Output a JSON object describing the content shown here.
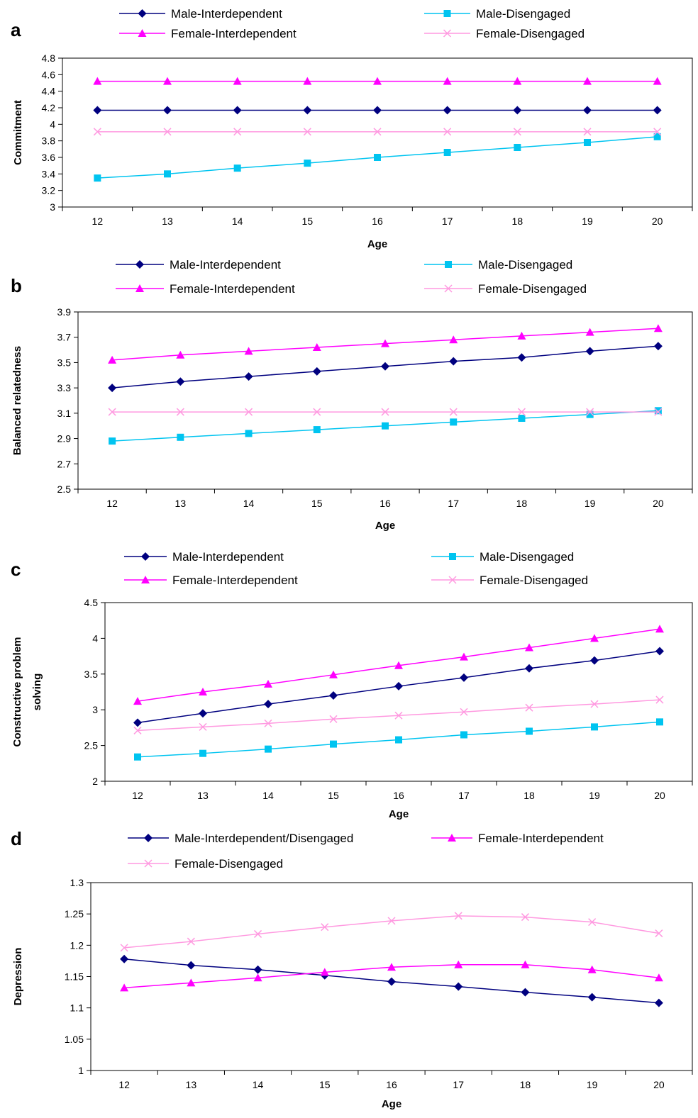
{
  "chart_data": [
    {
      "type": "line",
      "panel": "a",
      "xlabel": "Age",
      "ylabel": [
        "Commitment"
      ],
      "x": [
        12,
        13,
        14,
        15,
        16,
        17,
        18,
        19,
        20
      ],
      "ylim": [
        3,
        4.8
      ],
      "yticks": [
        3,
        3.2,
        3.4,
        3.6,
        3.8,
        4,
        4.2,
        4.4,
        4.6,
        4.8
      ],
      "ytick_labels": [
        "3",
        "3.2",
        "3.4",
        "3.6",
        "3.8",
        "4",
        "4.2",
        "4.4",
        "4.6",
        "4.8"
      ],
      "grid": false,
      "legend": [
        {
          "name": "Male-Interdependent",
          "row": 0,
          "col": 0
        },
        {
          "name": "Male-Disengaged",
          "row": 0,
          "col": 1
        },
        {
          "name": "Female-Interdependent",
          "row": 1,
          "col": 0
        },
        {
          "name": "Female-Disengaged",
          "row": 1,
          "col": 1
        }
      ],
      "series": [
        {
          "name": "Male-Interdependent",
          "color": "#00007f",
          "marker": "diamond",
          "values": [
            4.17,
            4.17,
            4.17,
            4.17,
            4.17,
            4.17,
            4.17,
            4.17,
            4.17
          ]
        },
        {
          "name": "Male-Disengaged",
          "color": "#00c4f0",
          "marker": "square",
          "values": [
            3.35,
            3.4,
            3.47,
            3.53,
            3.6,
            3.66,
            3.72,
            3.78,
            3.85
          ]
        },
        {
          "name": "Female-Interdependent",
          "color": "#ff00ff",
          "marker": "triangle",
          "values": [
            4.52,
            4.52,
            4.52,
            4.52,
            4.52,
            4.52,
            4.52,
            4.52,
            4.52
          ]
        },
        {
          "name": "Female-Disengaged",
          "color": "#ff99e0",
          "marker": "x",
          "values": [
            3.91,
            3.91,
            3.91,
            3.91,
            3.91,
            3.91,
            3.91,
            3.91,
            3.91
          ]
        }
      ]
    },
    {
      "type": "line",
      "panel": "b",
      "xlabel": "Age",
      "ylabel": [
        "Balanced relatedness"
      ],
      "x": [
        12,
        13,
        14,
        15,
        16,
        17,
        18,
        19,
        20
      ],
      "ylim": [
        2.5,
        3.9
      ],
      "yticks": [
        2.5,
        2.7,
        2.9,
        3.1,
        3.3,
        3.5,
        3.7,
        3.9
      ],
      "ytick_labels": [
        "2.5",
        "2.7",
        "2.9",
        "3.1",
        "3.3",
        "3.5",
        "3.7",
        "3.9"
      ],
      "grid": false,
      "legend": [
        {
          "name": "Male-Interdependent",
          "row": 0,
          "col": 0
        },
        {
          "name": "Male-Disengaged",
          "row": 0,
          "col": 1
        },
        {
          "name": "Female-Interdependent",
          "row": 1,
          "col": 0
        },
        {
          "name": "Female-Disengaged",
          "row": 1,
          "col": 1
        }
      ],
      "series": [
        {
          "name": "Male-Interdependent",
          "color": "#00007f",
          "marker": "diamond",
          "values": [
            3.3,
            3.35,
            3.39,
            3.43,
            3.47,
            3.51,
            3.54,
            3.59,
            3.63
          ]
        },
        {
          "name": "Male-Disengaged",
          "color": "#00c4f0",
          "marker": "square",
          "values": [
            2.88,
            2.91,
            2.94,
            2.97,
            3.0,
            3.03,
            3.06,
            3.09,
            3.12
          ]
        },
        {
          "name": "Female-Interdependent",
          "color": "#ff00ff",
          "marker": "triangle",
          "values": [
            3.52,
            3.56,
            3.59,
            3.62,
            3.65,
            3.68,
            3.71,
            3.74,
            3.77
          ]
        },
        {
          "name": "Female-Disengaged",
          "color": "#ff99e0",
          "marker": "x",
          "values": [
            3.11,
            3.11,
            3.11,
            3.11,
            3.11,
            3.11,
            3.11,
            3.11,
            3.11
          ]
        }
      ]
    },
    {
      "type": "line",
      "panel": "c",
      "xlabel": "Age",
      "ylabel": [
        "Constructive problem",
        "solving"
      ],
      "x": [
        12,
        13,
        14,
        15,
        16,
        17,
        18,
        19,
        20
      ],
      "ylim": [
        2,
        4.5
      ],
      "yticks": [
        2,
        2.5,
        3,
        3.5,
        4,
        4.5
      ],
      "ytick_labels": [
        "2",
        "2.5",
        "3",
        "3.5",
        "4",
        "4.5"
      ],
      "grid": false,
      "legend": [
        {
          "name": "Male-Interdependent",
          "row": 0,
          "col": 0
        },
        {
          "name": "Male-Disengaged",
          "row": 0,
          "col": 1
        },
        {
          "name": "Female-Interdependent",
          "row": 1,
          "col": 0
        },
        {
          "name": "Female-Disengaged",
          "row": 1,
          "col": 1
        }
      ],
      "series": [
        {
          "name": "Male-Interdependent",
          "color": "#00007f",
          "marker": "diamond",
          "values": [
            2.82,
            2.95,
            3.08,
            3.2,
            3.33,
            3.45,
            3.58,
            3.69,
            3.82
          ]
        },
        {
          "name": "Male-Disengaged",
          "color": "#00c4f0",
          "marker": "square",
          "values": [
            2.34,
            2.39,
            2.45,
            2.52,
            2.58,
            2.65,
            2.7,
            2.76,
            2.83
          ]
        },
        {
          "name": "Female-Interdependent",
          "color": "#ff00ff",
          "marker": "triangle",
          "values": [
            3.12,
            3.25,
            3.36,
            3.49,
            3.62,
            3.74,
            3.87,
            4.0,
            4.13
          ]
        },
        {
          "name": "Female-Disengaged",
          "color": "#ff99e0",
          "marker": "x",
          "values": [
            2.71,
            2.76,
            2.81,
            2.87,
            2.92,
            2.97,
            3.03,
            3.08,
            3.14
          ]
        }
      ]
    },
    {
      "type": "line",
      "panel": "d",
      "xlabel": "Age",
      "ylabel": [
        "Depression"
      ],
      "x": [
        12,
        13,
        14,
        15,
        16,
        17,
        18,
        19,
        20
      ],
      "ylim": [
        1,
        1.3
      ],
      "yticks": [
        1,
        1.05,
        1.1,
        1.15,
        1.2,
        1.25,
        1.3
      ],
      "ytick_labels": [
        "1",
        "1.05",
        "1.1",
        "1.15",
        "1.2",
        "1.25",
        "1.3"
      ],
      "grid": false,
      "legend": [
        {
          "name": "Male-Interdependent/Disengaged",
          "row": 0,
          "col": 0
        },
        {
          "name": "Female-Interdependent",
          "row": 0,
          "col": 1
        },
        {
          "name": "Female-Disengaged",
          "row": 1,
          "col": 0
        }
      ],
      "series": [
        {
          "name": "Male-Interdependent/Disengaged",
          "color": "#00007f",
          "marker": "diamond",
          "values": [
            1.178,
            1.168,
            1.161,
            1.152,
            1.142,
            1.134,
            1.125,
            1.117,
            1.108
          ]
        },
        {
          "name": "Female-Interdependent",
          "color": "#ff00ff",
          "marker": "triangle",
          "values": [
            1.132,
            1.14,
            1.148,
            1.157,
            1.165,
            1.169,
            1.169,
            1.161,
            1.148
          ]
        },
        {
          "name": "Female-Disengaged",
          "color": "#ff99e0",
          "marker": "x",
          "values": [
            1.196,
            1.206,
            1.218,
            1.229,
            1.239,
            1.247,
            1.245,
            1.237,
            1.219
          ]
        }
      ]
    }
  ]
}
